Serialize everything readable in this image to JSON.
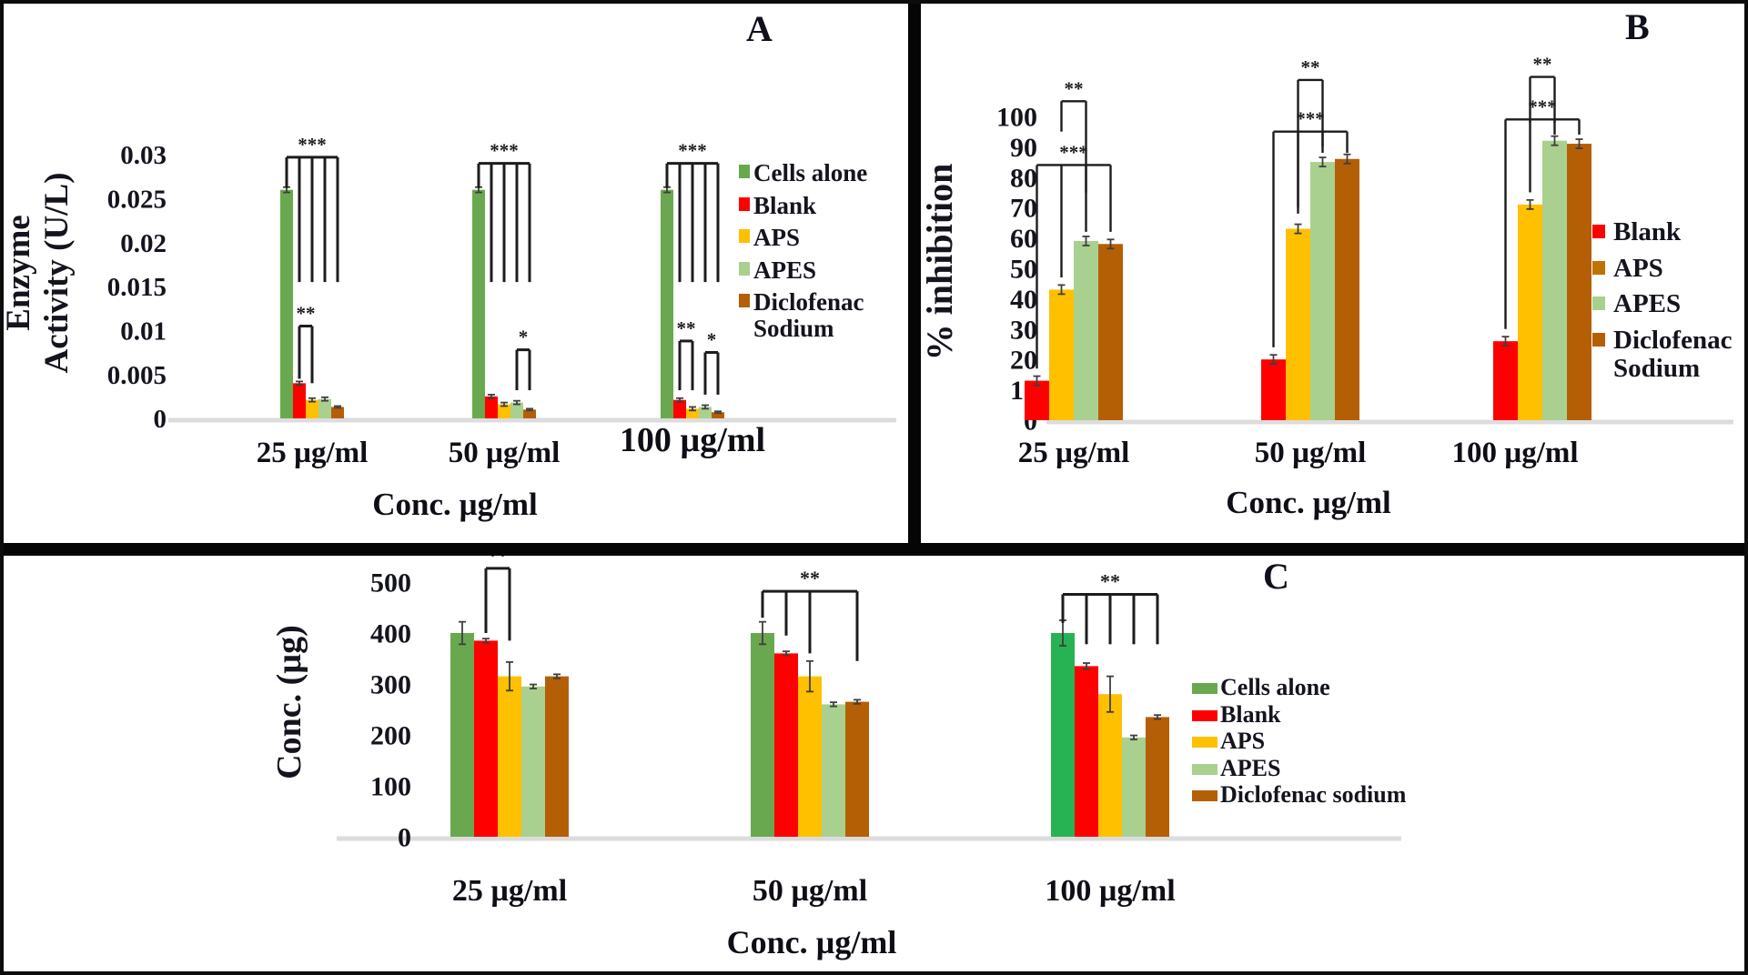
{
  "chart_data": [
    {
      "id": "A",
      "type": "bar",
      "panel_label": "A",
      "ylabel_lines": [
        "Enzyme",
        "Activity (U/L)"
      ],
      "xlabel": "Conc. µg/ml",
      "categories": [
        "25 µg/ml",
        "50 µg/ml",
        "100 µg/ml"
      ],
      "yticks": [
        {
          "label": "0",
          "value": 0
        },
        {
          "label": "0.005",
          "value": 0.005
        },
        {
          "label": "0.01",
          "value": 0.01
        },
        {
          "label": "0.015",
          "value": 0.015
        },
        {
          "label": "0.02",
          "value": 0.02
        },
        {
          "label": "0.025",
          "value": 0.025
        },
        {
          "label": "0.03",
          "value": 0.03
        }
      ],
      "ylim": [
        0,
        0.031
      ],
      "grid": false,
      "legend_position": "right",
      "series": [
        {
          "name": "Cells alone",
          "color": "#6aa84f",
          "values": [
            0.026,
            0.026,
            0.026
          ],
          "errors": [
            0.0003,
            0.0003,
            0.0003
          ]
        },
        {
          "name": "Blank",
          "color": "#fe0000",
          "values": [
            0.004,
            0.0025,
            0.0021
          ],
          "errors": [
            0.0002,
            0.0002,
            0.0002
          ]
        },
        {
          "name": "APS",
          "color": "#ffc000",
          "values": [
            0.0021,
            0.0016,
            0.0011
          ],
          "errors": [
            0.0002,
            0.0002,
            0.0002
          ]
        },
        {
          "name": "APES",
          "color": "#a9d08e",
          "values": [
            0.0022,
            0.0018,
            0.0013
          ],
          "errors": [
            0.0002,
            0.0002,
            0.0002
          ]
        },
        {
          "name": "Diclofenac Sodium",
          "color": "#b45f06",
          "values": [
            0.0013,
            0.001,
            0.0007
          ],
          "errors": [
            0.0001,
            0.0001,
            0.0001
          ]
        }
      ],
      "legend": [
        {
          "label": "Cells alone",
          "color": "#6aa84f"
        },
        {
          "label": "Blank",
          "color": "#fe0000"
        },
        {
          "label": "APS",
          "color": "#ffc000"
        },
        {
          "label": "APES",
          "color": "#a9d08e"
        },
        {
          "label": "Diclofenac\nSodium",
          "color": "#b45f06"
        }
      ],
      "significance": [
        {
          "label": "***",
          "group": 0,
          "y": 0.0297,
          "anchors": [
            [
              0,
              0.0262
            ],
            [
              1,
              0.0155
            ],
            [
              2,
              0.0155
            ],
            [
              3,
              0.0155
            ],
            [
              4,
              0.0155
            ]
          ]
        },
        {
          "label": "***",
          "group": 1,
          "y": 0.029,
          "anchors": [
            [
              0,
              0.0262
            ],
            [
              1,
              0.0155
            ],
            [
              2,
              0.0155
            ],
            [
              3,
              0.0155
            ],
            [
              4,
              0.0155
            ]
          ]
        },
        {
          "label": "***",
          "group": 2,
          "y": 0.029,
          "anchors": [
            [
              0,
              0.0262
            ],
            [
              1,
              0.0155
            ],
            [
              2,
              0.0155
            ],
            [
              3,
              0.0155
            ],
            [
              4,
              0.0155
            ]
          ]
        },
        {
          "label": "**",
          "group": 0,
          "y": 0.0105,
          "anchors": [
            [
              1,
              0.0045
            ],
            [
              2,
              0.004
            ]
          ]
        },
        {
          "label": "*",
          "group": 1,
          "y": 0.0078,
          "anchors": [
            [
              3,
              0.0032
            ],
            [
              4,
              0.0032
            ]
          ]
        },
        {
          "label": "**",
          "group": 2,
          "y": 0.0088,
          "anchors": [
            [
              1,
              0.0032
            ],
            [
              2,
              0.0032
            ]
          ]
        },
        {
          "label": "*",
          "group": 2,
          "y": 0.0075,
          "anchors": [
            [
              3,
              0.0027
            ],
            [
              4,
              0.0027
            ]
          ]
        }
      ]
    },
    {
      "id": "B",
      "type": "bar",
      "panel_label": "B",
      "ylabel_lines": [
        "% inhibition"
      ],
      "xlabel": "Conc. µg/ml",
      "categories": [
        "25 µg/ml",
        "50 µg/ml",
        "100 µg/ml"
      ],
      "yticks": [
        {
          "label": "0",
          "value": 0
        },
        {
          "label": "10",
          "value": 10
        },
        {
          "label": "20",
          "value": 20
        },
        {
          "label": "30",
          "value": 30
        },
        {
          "label": "40",
          "value": 40
        },
        {
          "label": "50",
          "value": 50
        },
        {
          "label": "60",
          "value": 60
        },
        {
          "label": "70",
          "value": 70
        },
        {
          "label": "80",
          "value": 80
        },
        {
          "label": "90",
          "value": 90
        },
        {
          "label": "100",
          "value": 100
        }
      ],
      "ylim": [
        0,
        118
      ],
      "grid": false,
      "legend_position": "right",
      "series": [
        {
          "name": "Blank",
          "color": "#fe0000",
          "values": [
            13,
            20,
            26
          ],
          "errors": [
            1.5,
            1.5,
            1.5
          ]
        },
        {
          "name": "APS",
          "color": "#ffc000",
          "values": [
            43,
            63,
            71
          ],
          "errors": [
            1.5,
            1.5,
            1.5
          ]
        },
        {
          "name": "APES",
          "color": "#a9d08e",
          "values": [
            59,
            85,
            92
          ],
          "errors": [
            1.5,
            1.5,
            1.5
          ]
        },
        {
          "name": "Diclofenac Sodium",
          "color": "#b45f06",
          "values": [
            58,
            86,
            91
          ],
          "errors": [
            1.5,
            1.5,
            1.5
          ]
        }
      ],
      "legend": [
        {
          "label": "Blank",
          "color": "#fe0000"
        },
        {
          "label": "APS",
          "color": "#bf7300"
        },
        {
          "label": "APES",
          "color": "#a9d08e"
        },
        {
          "label": "Diclofenac\nSodium",
          "color": "#b45f06"
        }
      ],
      "significance": [
        {
          "label": "**",
          "group": 0,
          "y": 105,
          "anchors": [
            [
              1,
              95
            ],
            [
              2,
              75
            ]
          ]
        },
        {
          "label": "***",
          "group": 0,
          "y": 84,
          "anchors": [
            [
              0,
              17
            ],
            [
              1,
              47
            ],
            [
              2,
              62
            ],
            [
              3,
              62
            ]
          ]
        },
        {
          "label": "**",
          "group": 1,
          "y": 112,
          "anchors": [
            [
              1,
              70
            ],
            [
              2,
              90
            ]
          ]
        },
        {
          "label": "***",
          "group": 1,
          "y": 95,
          "anchors": [
            [
              0,
              24
            ],
            [
              1,
              68
            ],
            [
              2,
              88
            ],
            [
              3,
              88
            ]
          ]
        },
        {
          "label": "**",
          "group": 2,
          "y": 113,
          "anchors": [
            [
              1,
              98
            ],
            [
              2,
              98
            ]
          ]
        },
        {
          "label": "***",
          "group": 2,
          "y": 99,
          "anchors": [
            [
              0,
              30
            ],
            [
              1,
              75
            ],
            [
              2,
              94
            ],
            [
              3,
              94
            ]
          ]
        }
      ]
    },
    {
      "id": "C",
      "type": "bar",
      "panel_label": "C",
      "ylabel_lines": [
        "Conc. (µg)"
      ],
      "xlabel": "Conc. µg/ml",
      "categories": [
        "25 µg/ml",
        "50 µg/ml",
        "100 µg/ml"
      ],
      "yticks": [
        {
          "label": "0",
          "value": 0
        },
        {
          "label": "100",
          "value": 100
        },
        {
          "label": "200",
          "value": 200
        },
        {
          "label": "300",
          "value": 300
        },
        {
          "label": "400",
          "value": 400
        },
        {
          "label": "500",
          "value": 500
        }
      ],
      "ylim": [
        0,
        560
      ],
      "grid": false,
      "legend_position": "right",
      "series": [
        {
          "name": "Cells alone",
          "color": "#6aa84f",
          "colors_per_group": [
            "#6aa84f",
            "#6aa84f",
            "#27b353"
          ],
          "values": [
            400,
            400,
            400
          ],
          "errors": [
            22,
            22,
            25
          ]
        },
        {
          "name": "Blank",
          "color": "#fe0000",
          "values": [
            385,
            360,
            335
          ],
          "errors": [
            4,
            4,
            6
          ]
        },
        {
          "name": "APS",
          "color": "#ffc000",
          "values": [
            315,
            315,
            280
          ],
          "errors": [
            28,
            30,
            35
          ]
        },
        {
          "name": "APES",
          "color": "#a9d08e",
          "values": [
            295,
            260,
            195
          ],
          "errors": [
            4,
            4,
            4
          ]
        },
        {
          "name": "Diclofenac sodium",
          "color": "#b45f06",
          "values": [
            315,
            265,
            235
          ],
          "errors": [
            4,
            4,
            4
          ]
        }
      ],
      "legend": [
        {
          "label": "Cells alone",
          "color": "#6aa84f"
        },
        {
          "label": "Blank",
          "color": "#fe0000"
        },
        {
          "label": "APS",
          "color": "#ffc000"
        },
        {
          "label": "APES",
          "color": "#a9d08e"
        },
        {
          "label": "Diclofenac sodium",
          "color": "#b45f06"
        }
      ],
      "significance": [
        {
          "label": "**",
          "group": 0,
          "y": 527,
          "anchors": [
            [
              1,
              400
            ],
            [
              2,
              385
            ]
          ]
        },
        {
          "label": "**",
          "group": 1,
          "y": 482,
          "anchors": [
            [
              0,
              430
            ],
            [
              1,
              395
            ],
            [
              2,
              360
            ],
            [
              4,
              345
            ]
          ]
        },
        {
          "label": "**",
          "group": 2,
          "y": 476,
          "anchors": [
            [
              0,
              420
            ],
            [
              1,
              378
            ],
            [
              2,
              378
            ],
            [
              3,
              378
            ],
            [
              4,
              378
            ]
          ]
        }
      ]
    }
  ]
}
